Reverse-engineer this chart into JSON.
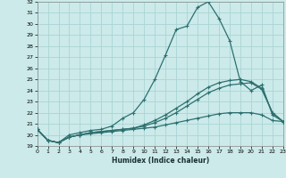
{
  "xlabel": "Humidex (Indice chaleur)",
  "bg_color": "#cceaea",
  "grid_color": "#aad4d4",
  "line_color": "#2d7070",
  "xlim": [
    0,
    23
  ],
  "ylim": [
    19,
    32
  ],
  "yticks": [
    19,
    20,
    21,
    22,
    23,
    24,
    25,
    26,
    27,
    28,
    29,
    30,
    31,
    32
  ],
  "xticks": [
    0,
    1,
    2,
    3,
    4,
    5,
    6,
    7,
    8,
    9,
    10,
    11,
    12,
    13,
    14,
    15,
    16,
    17,
    18,
    19,
    20,
    21,
    22,
    23
  ],
  "line1_x": [
    0,
    1,
    2,
    3,
    4,
    5,
    6,
    7,
    8,
    9,
    10,
    11,
    12,
    13,
    14,
    15,
    16,
    17,
    18,
    19,
    20,
    21,
    22,
    23
  ],
  "line1_y": [
    20.5,
    19.5,
    19.3,
    20.0,
    20.2,
    20.4,
    20.5,
    20.8,
    21.5,
    22.0,
    23.2,
    25.0,
    27.2,
    29.5,
    29.8,
    31.5,
    32.0,
    30.5,
    28.5,
    24.8,
    24.0,
    24.5,
    21.8,
    21.2
  ],
  "line2_x": [
    0,
    1,
    2,
    3,
    4,
    5,
    6,
    7,
    8,
    9,
    10,
    11,
    12,
    13,
    14,
    15,
    16,
    17,
    18,
    19,
    20,
    21,
    22,
    23
  ],
  "line2_y": [
    20.5,
    19.5,
    19.3,
    19.8,
    20.0,
    20.2,
    20.3,
    20.4,
    20.5,
    20.6,
    20.9,
    21.3,
    21.8,
    22.4,
    23.0,
    23.7,
    24.3,
    24.7,
    24.9,
    25.0,
    24.8,
    24.2,
    22.0,
    21.2
  ],
  "line3_x": [
    0,
    1,
    2,
    3,
    4,
    5,
    6,
    7,
    8,
    9,
    10,
    11,
    12,
    13,
    14,
    15,
    16,
    17,
    18,
    19,
    20,
    21,
    22,
    23
  ],
  "line3_y": [
    20.5,
    19.5,
    19.3,
    19.8,
    20.0,
    20.2,
    20.3,
    20.4,
    20.5,
    20.6,
    20.8,
    21.1,
    21.5,
    22.0,
    22.6,
    23.2,
    23.8,
    24.2,
    24.5,
    24.6,
    24.7,
    24.1,
    22.0,
    21.2
  ],
  "line4_x": [
    0,
    1,
    2,
    3,
    4,
    5,
    6,
    7,
    8,
    9,
    10,
    11,
    12,
    13,
    14,
    15,
    16,
    17,
    18,
    19,
    20,
    21,
    22,
    23
  ],
  "line4_y": [
    20.5,
    19.5,
    19.3,
    19.8,
    20.0,
    20.1,
    20.2,
    20.3,
    20.4,
    20.5,
    20.6,
    20.7,
    20.9,
    21.1,
    21.3,
    21.5,
    21.7,
    21.9,
    22.0,
    22.0,
    22.0,
    21.8,
    21.3,
    21.2
  ]
}
